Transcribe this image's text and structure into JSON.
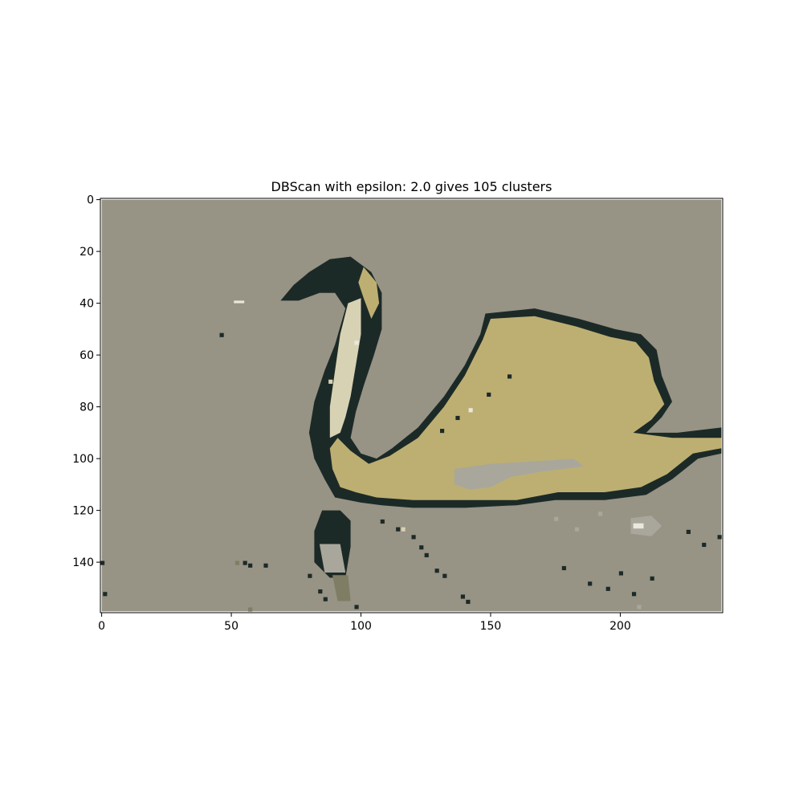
{
  "chart_data": {
    "type": "heatmap",
    "title": "DBScan with epsilon: 2.0 gives 105 clusters",
    "xlabel": "",
    "ylabel": "",
    "image_width": 240,
    "image_height": 160,
    "xlim": [
      -0.5,
      239.5
    ],
    "ylim": [
      159.5,
      -0.5
    ],
    "x_ticks": [
      0,
      50,
      100,
      150,
      200
    ],
    "y_ticks": [
      0,
      20,
      40,
      60,
      80,
      100,
      120,
      140
    ],
    "x_tick_labels": [
      "0",
      "50",
      "100",
      "150",
      "200"
    ],
    "y_tick_labels": [
      "0",
      "20",
      "40",
      "60",
      "80",
      "100",
      "120",
      "140"
    ],
    "grid": false,
    "colors": {
      "background": "#979385",
      "swan_body": "#bdaf72",
      "outline": "#1c2a27",
      "light_feather": "#d8d2b4",
      "gray_patch": "#a9a79b",
      "white_patch": "#eae8dc",
      "olive_reflection": "#7f7d64"
    },
    "regions": [
      {
        "cluster": "background",
        "color": "#979385",
        "points": [
          [
            0,
            0
          ],
          [
            239,
            0
          ],
          [
            239,
            159
          ],
          [
            0,
            159
          ]
        ]
      },
      {
        "cluster": "outline",
        "color": "#1c2a27",
        "points": [
          [
            148,
            44
          ],
          [
            167,
            42
          ],
          [
            184,
            46
          ],
          [
            198,
            50
          ],
          [
            208,
            52
          ],
          [
            214,
            58
          ],
          [
            216,
            68
          ],
          [
            220,
            78
          ],
          [
            216,
            84
          ],
          [
            210,
            90
          ],
          [
            222,
            90
          ],
          [
            239,
            88
          ],
          [
            239,
            98
          ],
          [
            230,
            100
          ],
          [
            220,
            108
          ],
          [
            210,
            114
          ],
          [
            194,
            116
          ],
          [
            175,
            116
          ],
          [
            160,
            118
          ],
          [
            140,
            119
          ],
          [
            120,
            119
          ],
          [
            108,
            118
          ],
          [
            100,
            117
          ],
          [
            90,
            115
          ],
          [
            86,
            108
          ],
          [
            82,
            100
          ],
          [
            80,
            90
          ],
          [
            82,
            78
          ],
          [
            86,
            66
          ],
          [
            90,
            56
          ],
          [
            94,
            42
          ],
          [
            90,
            36
          ],
          [
            84,
            36
          ],
          [
            76,
            39
          ],
          [
            69,
            39
          ],
          [
            74,
            33
          ],
          [
            80,
            28
          ],
          [
            88,
            23
          ],
          [
            96,
            22
          ],
          [
            104,
            28
          ],
          [
            108,
            36
          ],
          [
            108,
            50
          ],
          [
            105,
            60
          ],
          [
            101,
            72
          ],
          [
            98,
            82
          ],
          [
            96,
            92
          ],
          [
            100,
            98
          ],
          [
            106,
            100
          ],
          [
            112,
            96
          ],
          [
            122,
            88
          ],
          [
            132,
            76
          ],
          [
            140,
            64
          ],
          [
            146,
            52
          ]
        ]
      },
      {
        "cluster": "swan_body",
        "color": "#bdaf72",
        "points": [
          [
            150,
            46
          ],
          [
            167,
            45
          ],
          [
            183,
            49
          ],
          [
            196,
            53
          ],
          [
            206,
            55
          ],
          [
            211,
            61
          ],
          [
            213,
            70
          ],
          [
            217,
            79
          ],
          [
            212,
            85
          ],
          [
            205,
            90
          ],
          [
            220,
            92
          ],
          [
            239,
            92
          ],
          [
            239,
            96
          ],
          [
            228,
            98
          ],
          [
            218,
            106
          ],
          [
            208,
            111
          ],
          [
            194,
            113
          ],
          [
            176,
            113
          ],
          [
            160,
            116
          ],
          [
            140,
            116
          ],
          [
            120,
            116
          ],
          [
            106,
            115
          ],
          [
            98,
            113
          ],
          [
            92,
            111
          ],
          [
            89,
            104
          ],
          [
            88,
            96
          ],
          [
            91,
            92
          ],
          [
            96,
            97
          ],
          [
            103,
            102
          ],
          [
            111,
            99
          ],
          [
            122,
            92
          ],
          [
            132,
            80
          ],
          [
            140,
            68
          ],
          [
            147,
            54
          ]
        ]
      },
      {
        "cluster": "swan_body",
        "color": "#bdaf72",
        "points": [
          [
            101,
            26
          ],
          [
            106,
            32
          ],
          [
            107,
            40
          ],
          [
            104,
            46
          ],
          [
            101,
            38
          ],
          [
            99,
            32
          ]
        ]
      },
      {
        "cluster": "light_feather",
        "color": "#d8d2b4",
        "points": [
          [
            95,
            40
          ],
          [
            100,
            38
          ],
          [
            100,
            52
          ],
          [
            98,
            64
          ],
          [
            96,
            76
          ],
          [
            94,
            84
          ],
          [
            92,
            90
          ],
          [
            88,
            92
          ],
          [
            88,
            80
          ],
          [
            90,
            66
          ],
          [
            92,
            52
          ]
        ]
      },
      {
        "cluster": "gray_patch",
        "color": "#a9a79b",
        "points": [
          [
            136,
            104
          ],
          [
            150,
            102
          ],
          [
            168,
            101
          ],
          [
            182,
            100
          ],
          [
            186,
            103
          ],
          [
            170,
            105
          ],
          [
            158,
            107
          ],
          [
            150,
            111
          ],
          [
            142,
            112
          ],
          [
            136,
            110
          ]
        ]
      },
      {
        "cluster": "outline",
        "color": "#1c2a27",
        "points": [
          [
            85,
            120
          ],
          [
            92,
            120
          ],
          [
            96,
            124
          ],
          [
            96,
            134
          ],
          [
            94,
            146
          ],
          [
            88,
            146
          ],
          [
            82,
            140
          ],
          [
            82,
            128
          ]
        ]
      },
      {
        "cluster": "gray_patch",
        "color": "#a9a79b",
        "points": [
          [
            84,
            133
          ],
          [
            92,
            133
          ],
          [
            94,
            144
          ],
          [
            86,
            144
          ]
        ]
      },
      {
        "cluster": "olive_reflection",
        "color": "#7f7d64",
        "points": [
          [
            89,
            145
          ],
          [
            95,
            145
          ],
          [
            96,
            155
          ],
          [
            91,
            155
          ]
        ]
      },
      {
        "cluster": "gray_patch",
        "color": "#a9a79b",
        "points": [
          [
            204,
            123
          ],
          [
            212,
            122
          ],
          [
            216,
            126
          ],
          [
            212,
            130
          ],
          [
            204,
            129
          ]
        ]
      },
      {
        "cluster": "white_patch",
        "color": "#eae8dc",
        "points": [
          [
            205,
            125
          ],
          [
            209,
            125
          ],
          [
            209,
            127
          ],
          [
            205,
            127
          ]
        ]
      },
      {
        "cluster": "white_patch",
        "color": "#eae8dc",
        "points": [
          [
            51,
            39
          ],
          [
            55,
            39
          ],
          [
            55,
            40
          ],
          [
            51,
            40
          ]
        ]
      }
    ],
    "specks": [
      {
        "color": "#1c2a27",
        "x": 46,
        "y": 52
      },
      {
        "color": "#1c2a27",
        "x": 157,
        "y": 68
      },
      {
        "color": "#1c2a27",
        "x": 149,
        "y": 75
      },
      {
        "color": "#1c2a27",
        "x": 137,
        "y": 84
      },
      {
        "color": "#1c2a27",
        "x": 131,
        "y": 89
      },
      {
        "color": "#1c2a27",
        "x": 108,
        "y": 124
      },
      {
        "color": "#1c2a27",
        "x": 114,
        "y": 127
      },
      {
        "color": "#1c2a27",
        "x": 120,
        "y": 130
      },
      {
        "color": "#1c2a27",
        "x": 123,
        "y": 134
      },
      {
        "color": "#1c2a27",
        "x": 125,
        "y": 137
      },
      {
        "color": "#1c2a27",
        "x": 129,
        "y": 143
      },
      {
        "color": "#1c2a27",
        "x": 132,
        "y": 145
      },
      {
        "color": "#1c2a27",
        "x": 139,
        "y": 153
      },
      {
        "color": "#1c2a27",
        "x": 141,
        "y": 155
      },
      {
        "color": "#1c2a27",
        "x": 55,
        "y": 140
      },
      {
        "color": "#1c2a27",
        "x": 57,
        "y": 141
      },
      {
        "color": "#1c2a27",
        "x": 63,
        "y": 141
      },
      {
        "color": "#1c2a27",
        "x": 0,
        "y": 140
      },
      {
        "color": "#1c2a27",
        "x": 1,
        "y": 152
      },
      {
        "color": "#1c2a27",
        "x": 80,
        "y": 145
      },
      {
        "color": "#1c2a27",
        "x": 84,
        "y": 151
      },
      {
        "color": "#1c2a27",
        "x": 86,
        "y": 154
      },
      {
        "color": "#1c2a27",
        "x": 98,
        "y": 157
      },
      {
        "color": "#1c2a27",
        "x": 188,
        "y": 148
      },
      {
        "color": "#1c2a27",
        "x": 195,
        "y": 150
      },
      {
        "color": "#1c2a27",
        "x": 200,
        "y": 144
      },
      {
        "color": "#1c2a27",
        "x": 205,
        "y": 152
      },
      {
        "color": "#1c2a27",
        "x": 212,
        "y": 146
      },
      {
        "color": "#1c2a27",
        "x": 226,
        "y": 128
      },
      {
        "color": "#1c2a27",
        "x": 232,
        "y": 133
      },
      {
        "color": "#1c2a27",
        "x": 238,
        "y": 130
      },
      {
        "color": "#1c2a27",
        "x": 178,
        "y": 142
      },
      {
        "color": "#a9a79b",
        "x": 175,
        "y": 123
      },
      {
        "color": "#a9a79b",
        "x": 183,
        "y": 127
      },
      {
        "color": "#a9a79b",
        "x": 192,
        "y": 121
      },
      {
        "color": "#a9a79b",
        "x": 207,
        "y": 157
      },
      {
        "color": "#7f7d64",
        "x": 52,
        "y": 140
      },
      {
        "color": "#7f7d64",
        "x": 57,
        "y": 158
      },
      {
        "color": "#eae8dc",
        "x": 98,
        "y": 55
      },
      {
        "color": "#eae8dc",
        "x": 142,
        "y": 81
      },
      {
        "color": "#d8d2b4",
        "x": 116,
        "y": 127
      },
      {
        "color": "#d8d2b4",
        "x": 88,
        "y": 70
      }
    ]
  }
}
